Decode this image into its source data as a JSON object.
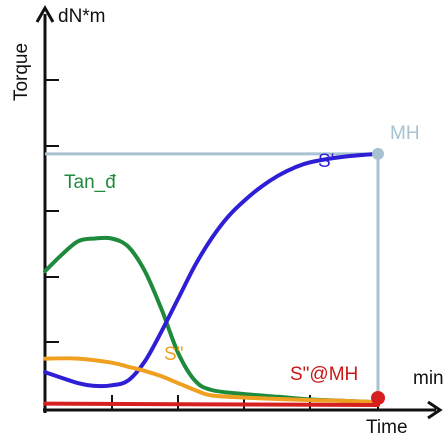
{
  "chart_data": {
    "type": "line",
    "title": "",
    "y_unit": "dN*m",
    "ylabel": "Torque",
    "xlabel": "Time",
    "x_unit": "min",
    "xlim": [
      0,
      10
    ],
    "ylim": [
      0,
      10
    ],
    "x_ticks": [
      2,
      4,
      6,
      8,
      10
    ],
    "y_ticks": [
      2,
      4,
      6,
      8,
      10
    ],
    "grid": false,
    "series": [
      {
        "name": "Tan_đ",
        "color": "#1e8a3c",
        "x": [
          0,
          0.5,
          1,
          1.5,
          2,
          2.5,
          3,
          3.5,
          4,
          4.5,
          5,
          6,
          7,
          8,
          9,
          10
        ],
        "y": [
          4.9,
          5.5,
          6.0,
          6.1,
          6.1,
          5.8,
          4.9,
          3.5,
          1.9,
          0.9,
          0.55,
          0.4,
          0.3,
          0.2,
          0.15,
          0.1
        ]
      },
      {
        "name": "S'",
        "color": "#2e1fd6",
        "x": [
          0,
          1,
          1.5,
          2,
          2.5,
          3,
          3.5,
          4,
          4.5,
          5,
          5.5,
          6,
          6.5,
          7,
          7.5,
          8,
          9,
          10
        ],
        "y": [
          1.2,
          0.8,
          0.7,
          0.72,
          0.9,
          1.6,
          2.7,
          3.9,
          5.1,
          6.1,
          6.9,
          7.5,
          8.0,
          8.4,
          8.7,
          8.9,
          9.1,
          9.2
        ]
      },
      {
        "name": "S\"",
        "color": "#f0a020",
        "x": [
          0,
          1,
          2,
          2.5,
          3,
          3.5,
          4,
          4.5,
          5,
          6,
          7,
          8,
          9,
          10
        ],
        "y": [
          1.7,
          1.7,
          1.55,
          1.4,
          1.25,
          1.05,
          0.8,
          0.55,
          0.35,
          0.27,
          0.22,
          0.18,
          0.15,
          0.1
        ]
      },
      {
        "name": "S\"@MH",
        "color": "#d62020",
        "x": [
          0,
          10
        ],
        "y": [
          0.05,
          0
        ]
      }
    ],
    "reference": {
      "name": "MH",
      "color": "#a8c2d2",
      "x": 10,
      "y": 9.2
    },
    "end_marker": {
      "x": 10,
      "y": 0,
      "color": "#d62020"
    }
  }
}
